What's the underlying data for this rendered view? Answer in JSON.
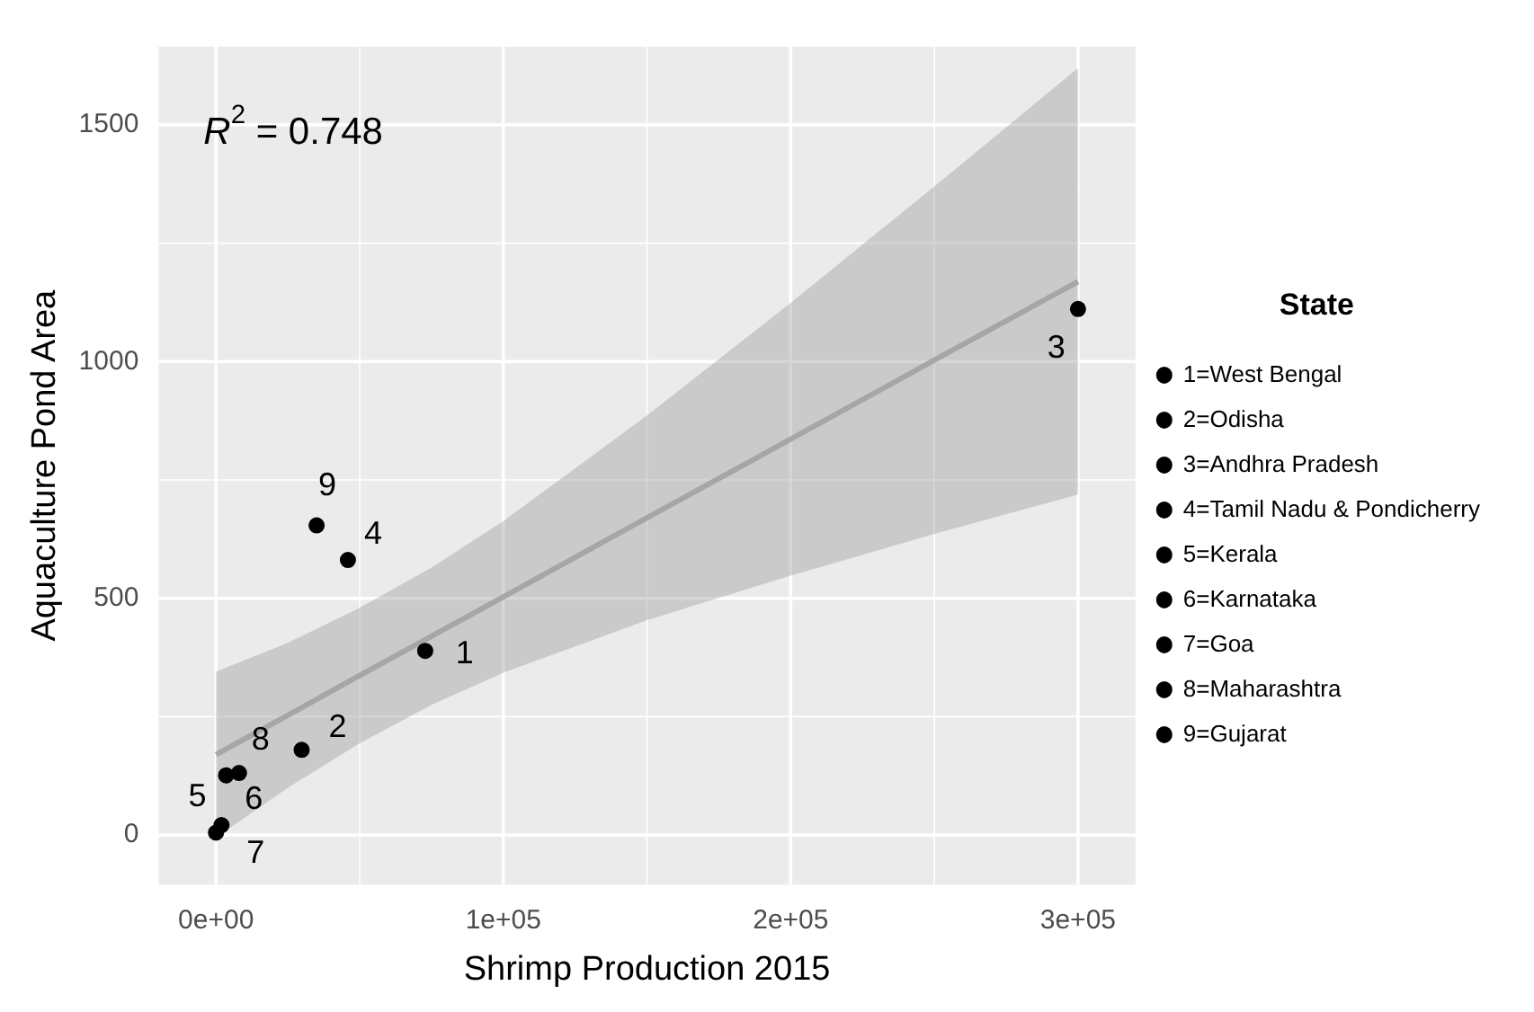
{
  "chart_data": {
    "type": "scatter",
    "xlabel": "Shrimp Production 2015",
    "ylabel": "Aquaculture Pond Area",
    "legend_title": "State",
    "legend": "right",
    "grid": true,
    "marker": "circle",
    "xlim": [
      -20000,
      320000
    ],
    "ylim": [
      -105,
      1665
    ],
    "xticks": [
      {
        "value": 0,
        "label": "0e+00"
      },
      {
        "value": 100000,
        "label": "1e+05"
      },
      {
        "value": 200000,
        "label": "2e+05"
      },
      {
        "value": 300000,
        "label": "3e+05"
      }
    ],
    "yticks": [
      0,
      500,
      1000,
      1500
    ],
    "series": [
      {
        "name": "1=West Bengal",
        "color": "#000000",
        "x": [
          72800
        ],
        "values": [
          389
        ]
      },
      {
        "name": "2=Odisha",
        "color": "#000000",
        "x": [
          29800
        ],
        "values": [
          180
        ]
      },
      {
        "name": "3=Andhra Pradesh",
        "color": "#000000",
        "x": [
          300000
        ],
        "values": [
          1111
        ]
      },
      {
        "name": "4=Tamil Nadu & Pondicherry",
        "color": "#000000",
        "x": [
          45900
        ],
        "values": [
          581
        ]
      },
      {
        "name": "5=Kerala",
        "color": "#000000",
        "x": [
          3500
        ],
        "values": [
          126
        ]
      },
      {
        "name": "6=Karnataka",
        "color": "#000000",
        "x": [
          1900
        ],
        "values": [
          21
        ]
      },
      {
        "name": "7=Goa",
        "color": "#000000",
        "x": [
          0
        ],
        "values": [
          5
        ]
      },
      {
        "name": "8=Maharashtra",
        "color": "#000000",
        "x": [
          8000
        ],
        "values": [
          131
        ]
      },
      {
        "name": "9=Gujarat",
        "color": "#000000",
        "x": [
          35000
        ],
        "values": [
          654
        ]
      },
      {
        "type": "line",
        "color": "#a6a6a6",
        "marker": "none",
        "x": [
          0,
          25000,
          50000,
          75000,
          100000,
          150000,
          200000,
          250000,
          300000
        ],
        "values": [
          170,
          253,
          337,
          420,
          503,
          670,
          836,
          1003,
          1169
        ],
        "lower": [
          -5,
          100,
          194,
          275,
          343,
          454,
          548,
          636,
          719
        ],
        "upper": [
          345,
          406,
          480,
          565,
          663,
          886,
          1124,
          1370,
          1620
        ]
      }
    ],
    "annotations": [
      "R$^{2}$ = 0.748",
      {
        "text": "1",
        "x": 72800,
        "y": 389
      },
      {
        "text": "2",
        "x": 29800,
        "y": 180
      },
      {
        "text": "3",
        "x": 300000,
        "y": 1111
      },
      {
        "text": "4",
        "x": 45900,
        "y": 581
      },
      {
        "text": "5",
        "x": 3500,
        "y": 126
      },
      {
        "text": "6",
        "x": 1900,
        "y": 21
      },
      {
        "text": "7",
        "x": 0,
        "y": 5
      },
      {
        "text": "8",
        "x": 8000,
        "y": 131
      },
      {
        "text": "9",
        "x": 35000,
        "y": 654
      }
    ]
  }
}
